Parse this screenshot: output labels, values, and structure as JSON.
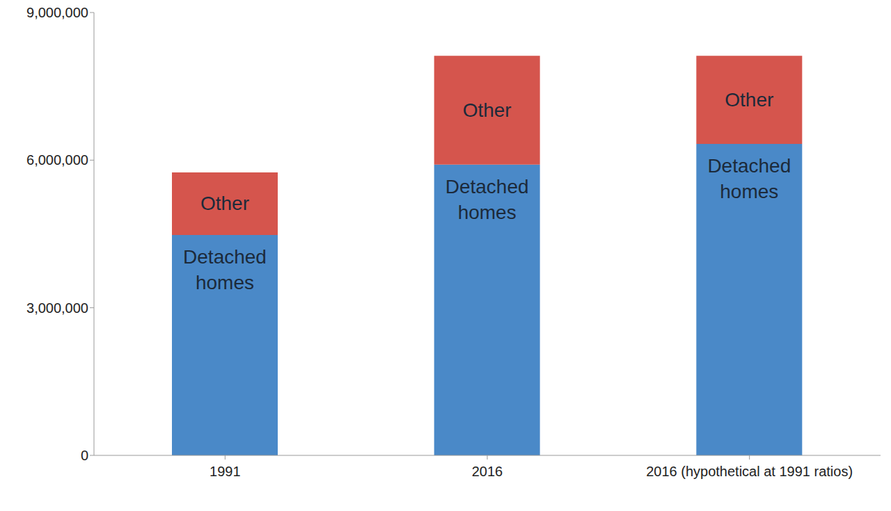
{
  "chart_data": {
    "type": "bar",
    "stacked": true,
    "grid": false,
    "categories": [
      "1991",
      "2016",
      "2016 (hypothetical at 1991 ratios)"
    ],
    "ylim": [
      0,
      9000000
    ],
    "yticks": [
      0,
      {
        "value": 3000000,
        "label": "3,000,000"
      },
      {
        "value": 6000000,
        "label": "6,000,000"
      },
      {
        "value": 9000000,
        "label": "9,000,000"
      }
    ],
    "series": [
      {
        "name": "Detached homes",
        "color": "#4a89c8",
        "values": [
          4480000,
          5910000,
          6330000
        ]
      },
      {
        "name": "Other",
        "color": "#d5554d",
        "values": [
          1270000,
          2210000,
          1790000
        ]
      }
    ]
  }
}
